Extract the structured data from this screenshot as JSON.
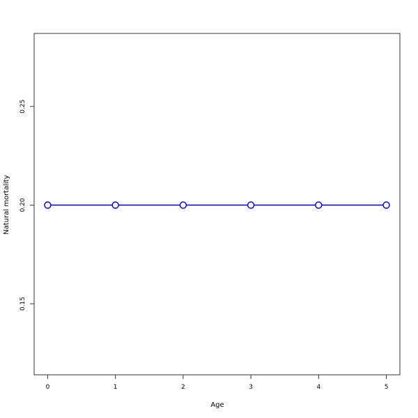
{
  "chart_data": {
    "type": "line",
    "title": "",
    "xlabel": "Age",
    "ylabel": "Natural mortality",
    "x": [
      0,
      1,
      2,
      3,
      4,
      5
    ],
    "values": [
      0.2,
      0.2,
      0.2,
      0.2,
      0.2,
      0.2
    ],
    "xlim": [
      -0.2,
      5.2
    ],
    "ylim": [
      0.114,
      0.287
    ],
    "xticks": [
      "0",
      "1",
      "2",
      "3",
      "4",
      "5"
    ],
    "yticks": [
      "0.15",
      "0.20",
      "0.25"
    ],
    "grid": false,
    "line_color": "#0000ff",
    "marker": "open-circle"
  }
}
